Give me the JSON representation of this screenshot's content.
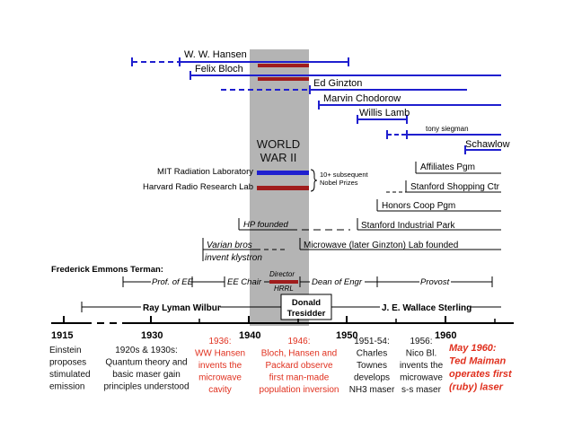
{
  "colors": {
    "blue": "#1f1fcf",
    "dark_red": "#a01c1c",
    "red_text": "#e0301e",
    "gray_band": "#b4b4b4",
    "black": "#000000"
  },
  "axis": {
    "years": [
      "1915",
      "1930",
      "1940",
      "1950",
      "1960"
    ]
  },
  "war_band": {
    "line1": "WORLD",
    "line2": "WAR II"
  },
  "people": {
    "hansen": "W. W. Hansen",
    "bloch": "Felix Bloch",
    "ginzton": "Ed Ginzton",
    "chodorow": "Marvin Chodorow",
    "lamb": "Willis Lamb",
    "siegman": "tony siegman",
    "schawlow": "Schawlow"
  },
  "labs": {
    "mit": "MIT Radiation Laboratory",
    "harvard": "Harvard Radio Research Lab",
    "nobel_line1": "10+ subsequent",
    "nobel_line2": "Nobel Prizes"
  },
  "programs": {
    "affiliates": "Affiliates Pgm",
    "shopping": "Stanford Shopping Ctr",
    "honors": "Honors Coop Pgm",
    "industrial_park": "Stanford Industrial Park",
    "hp": "HP founded",
    "varian_line1": "Varian bros",
    "varian_line2": "invent klystron",
    "microwave_lab": "Microwave (later Ginzton) Lab founded"
  },
  "terman": {
    "title": "Frederick Emmons Terman:",
    "prof": "Prof. of EE",
    "chair": "EE Chair",
    "director": "Director",
    "hrrl": "HRRL",
    "dean": "Dean of Engr",
    "provost": "Provost"
  },
  "presidents": {
    "wilbur": "Ray Lyman Wilbur",
    "tresidder_line1": "Donald",
    "tresidder_line2": "Tresidder",
    "sterling": "J. E. Wallace Sterling"
  },
  "events": [
    {
      "lines": [
        "Einstein",
        "proposes",
        "stimulated",
        "emission"
      ],
      "color": "black"
    },
    {
      "lines": [
        "1920s & 1930s:",
        "Quantum theory and",
        "basic maser gain",
        "principles understood"
      ],
      "color": "black"
    },
    {
      "lines": [
        "1936:",
        "WW Hansen",
        "invents the",
        "microwave",
        "cavity"
      ],
      "color": "red"
    },
    {
      "lines": [
        "1946:",
        "Bloch, Hansen and",
        "Packard observe",
        "first man-made",
        "population inversion"
      ],
      "color": "red"
    },
    {
      "lines": [
        "1951-54:",
        "Charles",
        "Townes",
        "develops",
        "NH3 maser"
      ],
      "color": "black"
    },
    {
      "lines": [
        "1956:",
        "Nico Bl.",
        "invents the",
        "microwave",
        "s-s maser"
      ],
      "color": "black"
    },
    {
      "lines": [
        "May 1960:",
        "Ted Maiman",
        "operates first",
        "(ruby) laser"
      ],
      "color": "red_bold"
    }
  ]
}
